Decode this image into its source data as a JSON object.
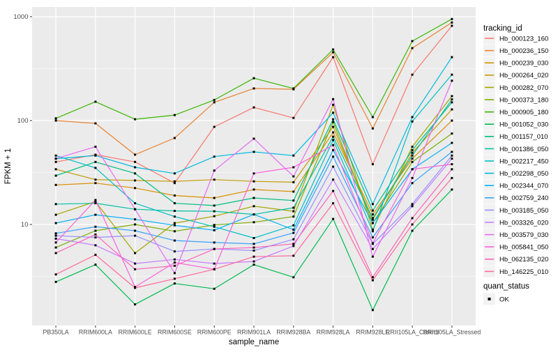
{
  "figure": {
    "xlabel": "sample_name",
    "ylabel": "FPKM + 1"
  },
  "legend": {
    "tracking_title": "tracking_id",
    "quant_title": "quant_status",
    "quant_value": "OK",
    "key_fill": "#F2F2F2",
    "point_shape": "filled-square",
    "point_color": "#000000"
  },
  "chart_data": {
    "type": "line",
    "title": "",
    "xlabel": "sample_name",
    "ylabel": "FPKM + 1",
    "x_categories": [
      "PB350LA",
      "RRIM600LA",
      "RRIM600LE",
      "RRIM600SE",
      "RRIM600PE",
      "RRIM901LA",
      "RRIM928BA",
      "RRIM928LA",
      "RRIM928LE",
      "RRII105LA_Control",
      "RRII105LA_Stressed"
    ],
    "y_scale": "log10",
    "y_ticks": [
      10,
      100,
      1000
    ],
    "y_tick_labels": [
      "10",
      "100",
      "1000"
    ],
    "y_minor_ticks": [
      3.162,
      31.62,
      316.2
    ],
    "ylim": [
      1.05,
      1250
    ],
    "grid": true,
    "legend_position": "right",
    "panel_bg": "#EBEBEB",
    "grid_color": "#FFFFFF",
    "axis_text_color": "#4D4D4D",
    "marker": "black-square",
    "series": [
      {
        "name": "Hb_000123_160",
        "color": "#F8766D",
        "values": [
          40,
          47,
          40,
          25,
          87,
          134,
          106,
          408,
          38,
          277,
          818
        ]
      },
      {
        "name": "Hb_000236_150",
        "color": "#EA8331",
        "values": [
          100,
          94,
          47,
          68,
          150,
          204,
          200,
          455,
          84,
          499,
          880
        ]
      },
      {
        "name": "Hb_000239_030",
        "color": "#D89000",
        "values": [
          24,
          25,
          22.4,
          19,
          18,
          21.7,
          20.7,
          77,
          12.5,
          43,
          100
        ]
      },
      {
        "name": "Hb_000264_020",
        "color": "#C39B00",
        "values": [
          34,
          27,
          26.5,
          26,
          27,
          26,
          25.5,
          87,
          11.1,
          49,
          128
        ]
      },
      {
        "name": "Hb_000282_070",
        "color": "#A3A500",
        "values": [
          12.4,
          16.6,
          5.3,
          10.3,
          12,
          15,
          13.4,
          142,
          8.9,
          56,
          172
        ]
      },
      {
        "name": "Hb_000373_180",
        "color": "#7CAE00",
        "values": [
          6.0,
          8.7,
          10,
          8.6,
          9.9,
          10.5,
          11.9,
          97,
          10.3,
          40,
          75
        ]
      },
      {
        "name": "Hb_000905_180",
        "color": "#39B600",
        "values": [
          105,
          152,
          103,
          113,
          158,
          256,
          204,
          484,
          108,
          582,
          950
        ]
      },
      {
        "name": "Hb_001052_030",
        "color": "#00BB4E",
        "values": [
          2.8,
          4.1,
          1.7,
          2.7,
          2.4,
          4.1,
          3.1,
          11.3,
          1.5,
          8.7,
          21.7
        ]
      },
      {
        "name": "Hb_001157_010",
        "color": "#00BF7D",
        "values": [
          29.5,
          40,
          31,
          16,
          15.2,
          18,
          17,
          103,
          13.6,
          52,
          150
        ]
      },
      {
        "name": "Hb_001386_050",
        "color": "#00C1A3",
        "values": [
          15.7,
          16,
          14,
          13.5,
          13.4,
          12.5,
          14.5,
          70,
          11.5,
          46,
          160
        ]
      },
      {
        "name": "Hb_002217_450",
        "color": "#00BFC4",
        "values": [
          46,
          35,
          16,
          11.9,
          9.5,
          7.4,
          9.8,
          65,
          8.6,
          98,
          277
        ]
      },
      {
        "name": "Hb_002298_050",
        "color": "#00BAE0",
        "values": [
          43,
          46,
          35.5,
          31,
          45,
          50,
          46,
          119,
          15.7,
          108,
          408
        ]
      },
      {
        "name": "Hb_002344_070",
        "color": "#00B0F6",
        "values": [
          10.3,
          12.4,
          11.2,
          9.8,
          8.8,
          12.5,
          8.9,
          52,
          10.3,
          34,
          61
        ]
      },
      {
        "name": "Hb_002759_240",
        "color": "#35A2FF",
        "values": [
          8.2,
          9.5,
          8.7,
          7.0,
          6.7,
          6.5,
          8.3,
          45,
          7.5,
          25,
          50
        ]
      },
      {
        "name": "Hb_003185_050",
        "color": "#9590FF",
        "values": [
          7.8,
          7.5,
          7.8,
          5.5,
          5.8,
          5.6,
          7.2,
          36,
          6.5,
          15.7,
          46
        ]
      },
      {
        "name": "Hb_003326_020",
        "color": "#C77CFF",
        "values": [
          7.3,
          6.3,
          4.2,
          4.6,
          4.2,
          4.4,
          6.2,
          27,
          5.8,
          15,
          43
        ]
      },
      {
        "name": "Hb_003579_030",
        "color": "#E76BF3",
        "values": [
          43,
          56,
          14,
          3.4,
          33,
          67,
          29,
          161,
          4.9,
          28,
          242
        ]
      },
      {
        "name": "Hb_005841_050",
        "color": "#FA62DB",
        "values": [
          6.7,
          17.2,
          2.5,
          4.3,
          3.7,
          31,
          35.5,
          58,
          6.6,
          34,
          38
        ]
      },
      {
        "name": "Hb_062135_020",
        "color": "#FF62BC",
        "values": [
          5.3,
          8.0,
          3.7,
          4.0,
          5.8,
          6.0,
          6.5,
          21,
          3.1,
          11.5,
          34
        ]
      },
      {
        "name": "Hb_146225_010",
        "color": "#FF6A98",
        "values": [
          3.3,
          5.1,
          2.45,
          3.0,
          3.7,
          4.9,
          5.0,
          16,
          2.9,
          10,
          28
        ]
      }
    ]
  }
}
